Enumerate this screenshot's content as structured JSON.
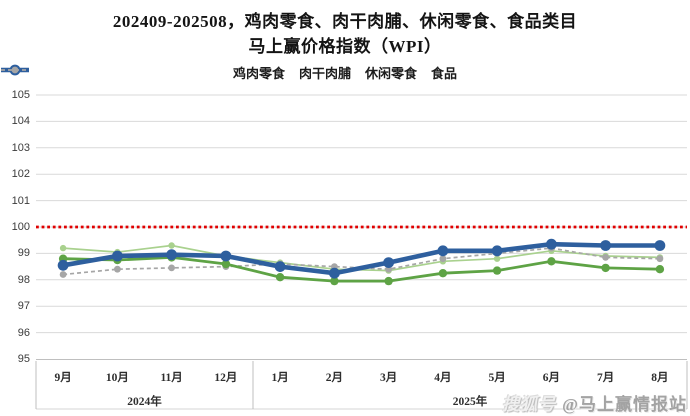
{
  "title": {
    "line1": "202409-202508，鸡肉零食、肉干肉脯、休闲零食、食品类目",
    "line2": "马上赢价格指数（WPI）"
  },
  "watermark": {
    "logo_text": "搜狐号",
    "account_text": "@马上赢情报站"
  },
  "colors": {
    "grid": "#d9d9d9",
    "axis": "#bfbfbf",
    "reference_red": "#e00000"
  },
  "chart_data": {
    "type": "line",
    "title": "202409-202508，鸡肉零食、肉干肉脯、休闲零食、食品类目 马上赢价格指数（WPI）",
    "categories": [
      "9月",
      "10月",
      "11月",
      "12月",
      "1月",
      "2月",
      "3月",
      "4月",
      "5月",
      "6月",
      "7月",
      "8月"
    ],
    "year_groups": [
      {
        "label": "2024年",
        "count": 4
      },
      {
        "label": "2025年",
        "count": 8
      }
    ],
    "ylim": [
      95,
      105
    ],
    "yticks": [
      105,
      104,
      103,
      102,
      101,
      100,
      99,
      98,
      97,
      96,
      95
    ],
    "grid": "horizontal",
    "legend_position": "top",
    "reference_line": {
      "value": 100,
      "color": "#e00000",
      "style": "dotted"
    },
    "series": [
      {
        "name": "鸡肉零食",
        "slug": "chicken-snacks",
        "color": "#a9d18e",
        "line_width": 1.7,
        "marker_radius": 3.2,
        "dash": null,
        "values": [
          99.2,
          99.05,
          99.3,
          98.9,
          98.65,
          98.4,
          98.35,
          98.7,
          98.8,
          99.1,
          98.9,
          98.85
        ]
      },
      {
        "name": "肉干肉脯",
        "slug": "dried-meat-jerky",
        "color": "#5ea345",
        "line_width": 2.8,
        "marker_radius": 4.2,
        "dash": null,
        "values": [
          98.8,
          98.75,
          98.85,
          98.6,
          98.1,
          97.95,
          97.95,
          98.25,
          98.35,
          98.7,
          98.45,
          98.4
        ]
      },
      {
        "name": "休闲零食",
        "slug": "leisure-snacks",
        "color": "#2e5f9e",
        "line_width": 4.6,
        "marker_radius": 5.4,
        "dash": null,
        "values": [
          98.55,
          98.9,
          98.95,
          98.9,
          98.5,
          98.25,
          98.65,
          99.1,
          99.1,
          99.35,
          99.3,
          99.3
        ]
      },
      {
        "name": "食品",
        "slug": "food",
        "color": "#a6a6a6",
        "line_width": 1.7,
        "marker_radius": 3.4,
        "dash": "4 3",
        "values": [
          98.2,
          98.4,
          98.45,
          98.5,
          98.6,
          98.5,
          98.4,
          98.8,
          99.0,
          99.2,
          98.85,
          98.8
        ]
      }
    ]
  }
}
